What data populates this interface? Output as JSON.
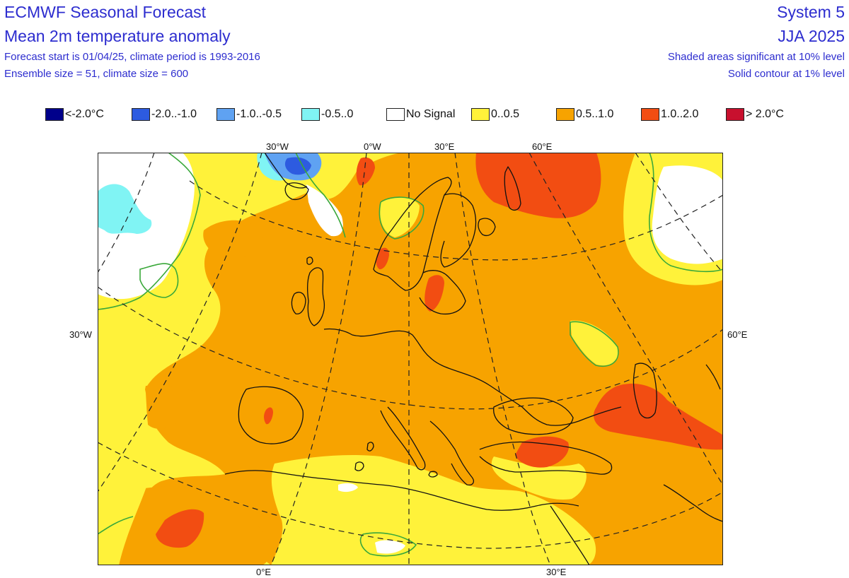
{
  "header": {
    "title": "ECMWF Seasonal Forecast",
    "subtitle": "Mean 2m temperature anomaly",
    "forecast_info": "Forecast start is 01/04/25, climate period is 1993-2016",
    "ensemble_info": "Ensemble size = 51, climate size = 600",
    "system": "System 5",
    "season": "JJA 2025",
    "significance_10": "Shaded areas significant at 10% level",
    "significance_1": "Solid contour at 1% level"
  },
  "legend": [
    {
      "label": "<-2.0°C",
      "color": "#00008b"
    },
    {
      "label": "-2.0..-1.0",
      "color": "#2d5be0"
    },
    {
      "label": "-1.0..-0.5",
      "color": "#5fa2f2"
    },
    {
      "label": "-0.5..0",
      "color": "#80f4f4"
    },
    {
      "label": "No Signal",
      "color": "#ffffff"
    },
    {
      "label": "0..0.5",
      "color": "#fff23a"
    },
    {
      "label": "0.5..1.0",
      "color": "#f7a300"
    },
    {
      "label": "1.0..2.0",
      "color": "#f24d12"
    },
    {
      "label": "> 2.0°C",
      "color": "#c8102e"
    }
  ],
  "grid_labels": {
    "top_30w": "30°W",
    "top_0w": "0°W",
    "top_30e": "30°E",
    "top_60e": "60°E",
    "left_30w": "30°W",
    "right_60e": "60°E",
    "bottom_0e": "0°E",
    "bottom_30e": "30°E"
  },
  "colors": {
    "background": "#ffffff",
    "title_text": "#2d2dcf",
    "contour_1pct": "#3aa83a",
    "coastline": "#111111",
    "gridline": "#222222"
  },
  "map_description_icons": {
    "coastline": "coastline-outline",
    "graticule": "dashed-lat-lon-grid"
  }
}
